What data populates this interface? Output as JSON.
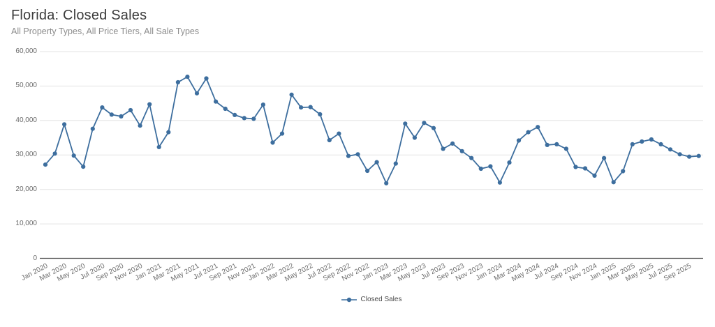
{
  "header": {
    "title": "Florida: Closed Sales",
    "subtitle": "All Property Types, All Price Tiers, All Sale Types"
  },
  "colors": {
    "series": "#3d6e9e",
    "grid": "#e3e3e3",
    "axis": "#4f4f4f",
    "tick_text": "#6b6b6b",
    "title": "#3c3c3c",
    "subtitle": "#8c8c8c"
  },
  "legend": {
    "position": "bottom",
    "items": [
      {
        "label": "Closed Sales",
        "color": "#3d6e9e",
        "marker": "line-dot"
      }
    ]
  },
  "chart_data": {
    "type": "line",
    "title": "Florida: Closed Sales",
    "subtitle": "All Property Types, All Price Tiers, All Sale Types",
    "grid": "horizontal",
    "legend_position": "bottom",
    "marker": "circle",
    "ylim": [
      0,
      60000
    ],
    "y_ticks": [
      0,
      10000,
      20000,
      30000,
      40000,
      50000,
      60000
    ],
    "y_tick_labels": [
      "0",
      "10,000",
      "20,000",
      "30,000",
      "40,000",
      "50,000",
      "60,000"
    ],
    "x": [
      "Jan 2020",
      "Feb 2020",
      "Mar 2020",
      "Apr 2020",
      "May 2020",
      "Jun 2020",
      "Jul 2020",
      "Aug 2020",
      "Sep 2020",
      "Oct 2020",
      "Nov 2020",
      "Dec 2020",
      "Jan 2021",
      "Feb 2021",
      "Mar 2021",
      "Apr 2021",
      "May 2021",
      "Jun 2021",
      "Jul 2021",
      "Aug 2021",
      "Sep 2021",
      "Oct 2021",
      "Nov 2021",
      "Dec 2021",
      "Jan 2022",
      "Feb 2022",
      "Mar 2022",
      "Apr 2022",
      "May 2022",
      "Jun 2022",
      "Jul 2022",
      "Aug 2022",
      "Sep 2022",
      "Oct 2022",
      "Nov 2022",
      "Dec 2022",
      "Jan 2023",
      "Feb 2023",
      "Mar 2023",
      "Apr 2023",
      "May 2023",
      "Jun 2023",
      "Jul 2023",
      "Aug 2023",
      "Sep 2023",
      "Oct 2023",
      "Nov 2023",
      "Dec 2023",
      "Jan 2024",
      "Feb 2024",
      "Mar 2024",
      "Apr 2024",
      "May 2024",
      "Jun 2024",
      "Jul 2024",
      "Aug 2024",
      "Sep 2024",
      "Oct 2024",
      "Nov 2024",
      "Dec 2024",
      "Jan 2025",
      "Feb 2025",
      "Mar 2025",
      "Apr 2025",
      "May 2025",
      "Jun 2025",
      "Jul 2025",
      "Aug 2025",
      "Sep 2025",
      "Oct 2025"
    ],
    "x_tick_labels": [
      "Jan 2020",
      "Mar 2020",
      "May 2020",
      "Jul 2020",
      "Sep 2020",
      "Nov 2020",
      "Jan 2021",
      "Mar 2021",
      "May 2021",
      "Jul 2021",
      "Sep 2021",
      "Nov 2021",
      "Jan 2022",
      "Mar 2022",
      "May 2022",
      "Jul 2022",
      "Sep 2022",
      "Nov 2022",
      "Jan 2023",
      "Mar 2023",
      "May 2023",
      "Jul 2023",
      "Sep 2023",
      "Nov 2023",
      "Jan 2024",
      "Mar 2024",
      "May 2024",
      "Jul 2024",
      "Sep 2024",
      "Nov 2024",
      "Jan 2025",
      "Mar 2025",
      "May 2025",
      "Jul 2025",
      "Sep 2025"
    ],
    "series": [
      {
        "name": "Closed Sales",
        "color": "#3d6e9e",
        "values": [
          27200,
          30400,
          38900,
          29800,
          26600,
          37600,
          43800,
          41700,
          41200,
          43000,
          38500,
          44700,
          32300,
          36600,
          51100,
          52700,
          47900,
          52200,
          45500,
          43400,
          41600,
          40700,
          40500,
          44600,
          33600,
          36200,
          47500,
          43800,
          43900,
          41800,
          34300,
          36200,
          29700,
          30200,
          25400,
          27900,
          21800,
          27500,
          39100,
          35000,
          39300,
          37800,
          31800,
          33300,
          31100,
          29100,
          26000,
          26700,
          22000,
          27800,
          34200,
          36600,
          38100,
          32900,
          33100,
          31800,
          26500,
          26100,
          24000,
          29100,
          22100,
          25300,
          33100,
          33900,
          34500,
          33100,
          31600,
          30200,
          29500,
          29700
        ]
      }
    ]
  }
}
